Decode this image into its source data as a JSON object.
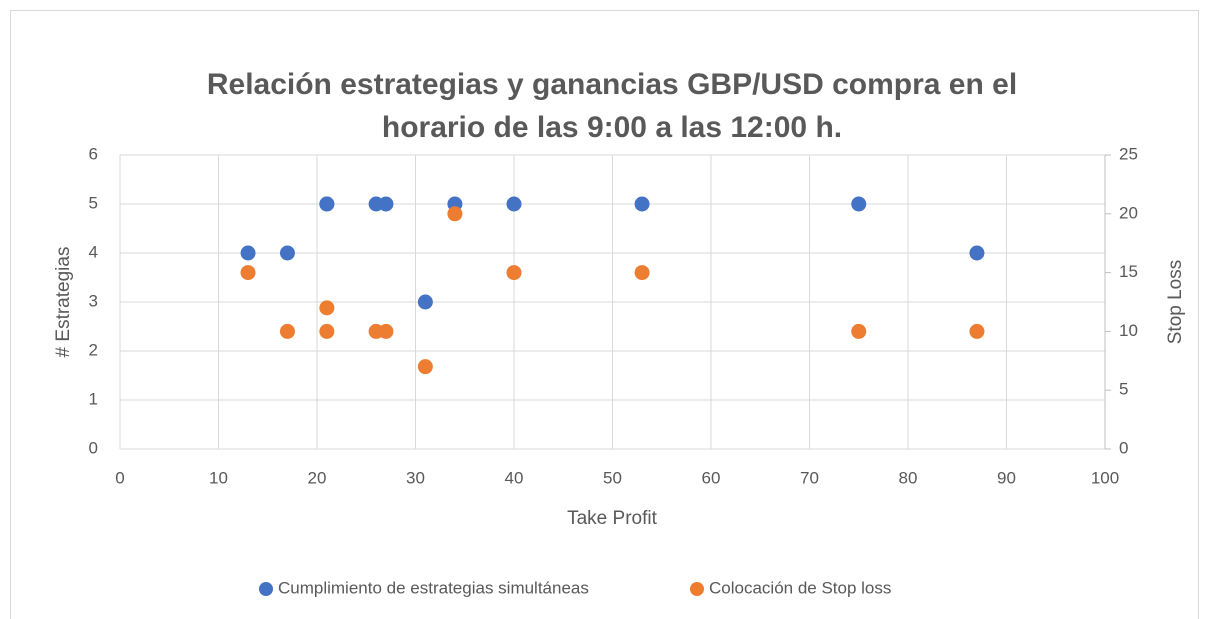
{
  "chart_data": {
    "type": "scatter",
    "title": [
      "Relación estrategias y ganancias GBP/USD compra en el",
      "horario de las 9:00 a las 12:00 h."
    ],
    "x_label": "Take Profit",
    "y_label": "# Estrategias",
    "y2_label": "Stop Loss",
    "x": [
      13,
      17,
      21,
      21,
      26,
      27,
      31,
      34,
      40,
      53,
      75,
      87
    ],
    "series": [
      {
        "name": "Cumplimiento de estrategias simultáneas",
        "color": "#4472c4",
        "values": [
          4,
          4,
          5,
          5,
          5,
          5,
          3,
          5,
          5,
          5,
          5,
          4
        ]
      },
      {
        "name": "Colocación de Stop loss",
        "color": "#ed7d31",
        "axis": "y2",
        "values": [
          15,
          10,
          12,
          10,
          10,
          10,
          7,
          20,
          15,
          15,
          10,
          10
        ]
      }
    ],
    "xlim": [
      0,
      100
    ],
    "xticks": [
      0,
      10,
      20,
      30,
      40,
      50,
      60,
      70,
      80,
      90,
      100
    ],
    "ylim": [
      0,
      6
    ],
    "yticks": [
      0,
      1,
      2,
      3,
      4,
      5,
      6
    ],
    "y2lim": [
      0,
      25
    ],
    "y2ticks": [
      0,
      5,
      10,
      15,
      20,
      25
    ],
    "grid": true,
    "legend": "bottom"
  }
}
